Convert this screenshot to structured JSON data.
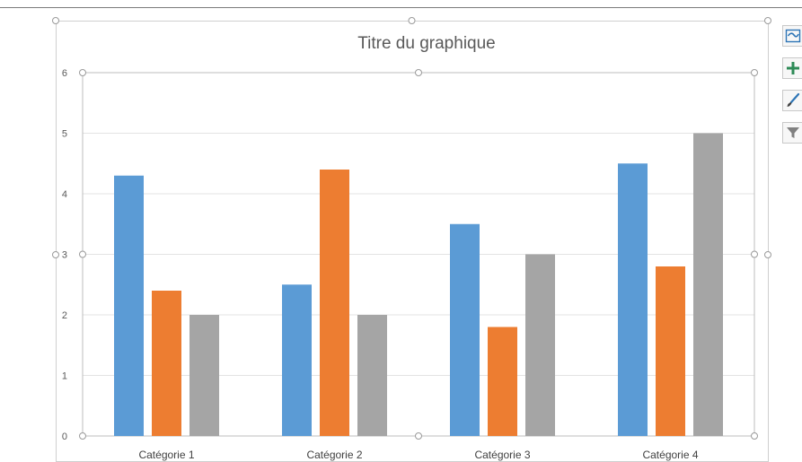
{
  "chart_data": {
    "type": "bar",
    "title": "Titre du graphique",
    "categories": [
      "Catégorie 1",
      "Catégorie 2",
      "Catégorie 3",
      "Catégorie 4"
    ],
    "series": [
      {
        "color": "#5b9bd5",
        "values": [
          4.3,
          2.5,
          3.5,
          4.5
        ]
      },
      {
        "color": "#ed7d31",
        "values": [
          2.4,
          4.4,
          1.8,
          2.8
        ]
      },
      {
        "color": "#a5a5a5",
        "values": [
          2.0,
          2.0,
          3.0,
          5.0
        ]
      }
    ],
    "ylim": [
      0,
      6
    ],
    "yticks": [
      "0",
      "1",
      "2",
      "3",
      "4",
      "5",
      "6"
    ],
    "xlabel": "",
    "ylabel": "",
    "grid": true,
    "legend": "none"
  },
  "side_tools": [
    {
      "icon": "chart-layout-icon",
      "color": "#2e75b6"
    },
    {
      "icon": "plus-icon",
      "color": "#2e8b57"
    },
    {
      "icon": "brush-icon",
      "color": "#2e75b6"
    },
    {
      "icon": "filter-icon",
      "color": "#595959"
    }
  ]
}
